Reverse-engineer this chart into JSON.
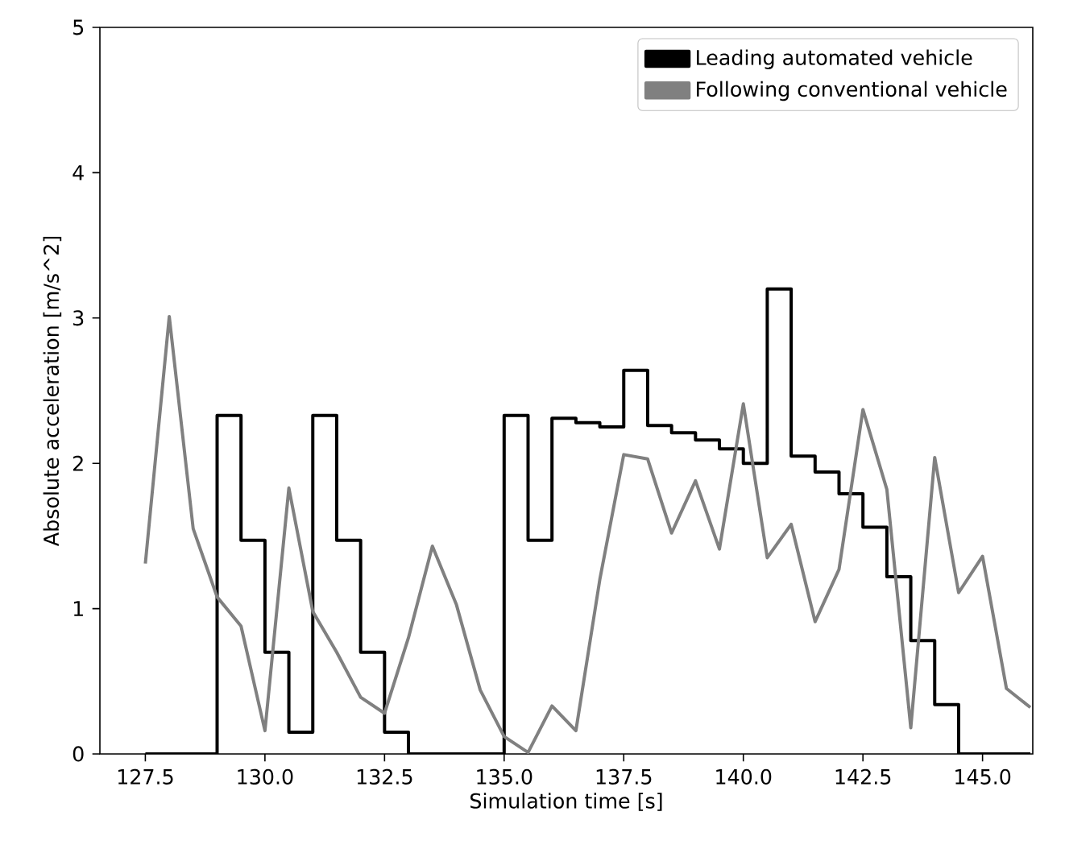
{
  "chart_data": {
    "type": "line",
    "xlabel": "Simulation time [s]",
    "ylabel": "Absolute acceleration [m/s^2]",
    "x": [
      127.5,
      128,
      128.5,
      129,
      129.5,
      130,
      130.5,
      131,
      131.5,
      132,
      132.5,
      133,
      133.5,
      134,
      134.5,
      135,
      135.5,
      136,
      136.5,
      137,
      137.5,
      138,
      138.5,
      139,
      139.5,
      140,
      140.5,
      141,
      141.5,
      142,
      142.5,
      143,
      143.5,
      144,
      144.5,
      145,
      145.5,
      146
    ],
    "series": [
      {
        "name": "Leading automated vehicle",
        "type": "step",
        "color": "#000000",
        "values": [
          0,
          0,
          0,
          2.33,
          1.47,
          0.7,
          0.15,
          2.33,
          1.47,
          0.7,
          0.15,
          0,
          0,
          0,
          0,
          2.33,
          1.47,
          2.31,
          2.28,
          2.25,
          2.64,
          2.26,
          2.21,
          2.16,
          2.1,
          2.0,
          3.2,
          2.05,
          1.94,
          1.79,
          1.56,
          1.22,
          0.78,
          0.34,
          0,
          0,
          0,
          0
        ]
      },
      {
        "name": "Following conventional vehicle",
        "color": "#808080",
        "values": [
          1.31,
          3.01,
          1.55,
          1.08,
          0.88,
          0.16,
          1.83,
          0.98,
          0.7,
          0.39,
          0.28,
          0.8,
          1.43,
          1.03,
          0.44,
          0.12,
          0.01,
          0.33,
          0.16,
          1.2,
          2.06,
          2.03,
          1.52,
          1.88,
          1.41,
          2.41,
          1.35,
          1.58,
          0.91,
          1.27,
          2.37,
          1.82,
          0.18,
          2.04,
          1.11,
          1.36,
          0.45,
          0.32
        ]
      }
    ],
    "xlim": [
      126.55,
      146.05
    ],
    "ylim": [
      0,
      5
    ],
    "xticks": [
      127.5,
      {
        "value": 130,
        "label": "130.0"
      },
      132.5,
      {
        "value": 135,
        "label": "135.0"
      },
      137.5,
      {
        "value": 140,
        "label": "140.0"
      },
      142.5,
      {
        "value": 145,
        "label": "145.0"
      }
    ],
    "yticks": [
      0,
      1,
      2,
      3,
      4,
      5
    ],
    "legend": "top right"
  }
}
